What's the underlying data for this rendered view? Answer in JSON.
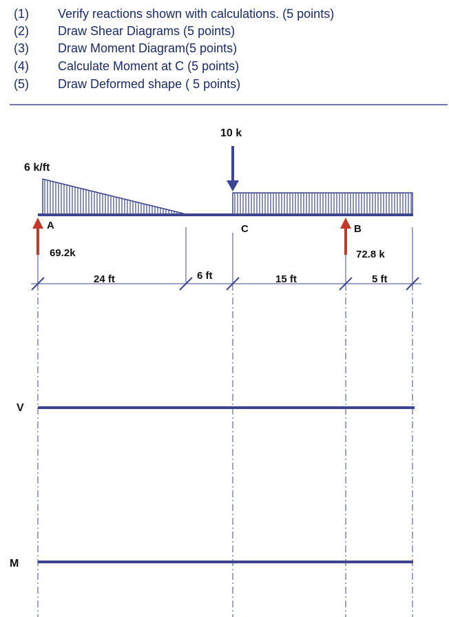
{
  "tasks": [
    {
      "num": "(1)",
      "text": "Verify reactions shown with calculations. (5 points)"
    },
    {
      "num": "(2)",
      "text": "Draw Shear Diagrams (5 points)"
    },
    {
      "num": "(3)",
      "text": "Draw Moment Diagram(5 points)"
    },
    {
      "num": "(4)",
      "text": "Calculate Moment at C (5 points)"
    },
    {
      "num": "(5)",
      "text": "Draw Deformed shape ( 5 points)"
    }
  ],
  "loads": {
    "point_load": "10 k",
    "distributed_load": "6 k/ft"
  },
  "supports": {
    "a_label": "A",
    "b_label": "B",
    "c_label": "C",
    "reaction_a": "69.2k",
    "reaction_b": "72.8 k"
  },
  "dimensions": [
    "24 ft",
    "6 ft",
    "15 ft",
    "5 ft"
  ],
  "diagram_labels": {
    "shear": "V",
    "moment": "M"
  },
  "colors": {
    "beam": "#3c4690",
    "reaction_arrow": "#c0392b",
    "text": "#1a2a6b"
  }
}
